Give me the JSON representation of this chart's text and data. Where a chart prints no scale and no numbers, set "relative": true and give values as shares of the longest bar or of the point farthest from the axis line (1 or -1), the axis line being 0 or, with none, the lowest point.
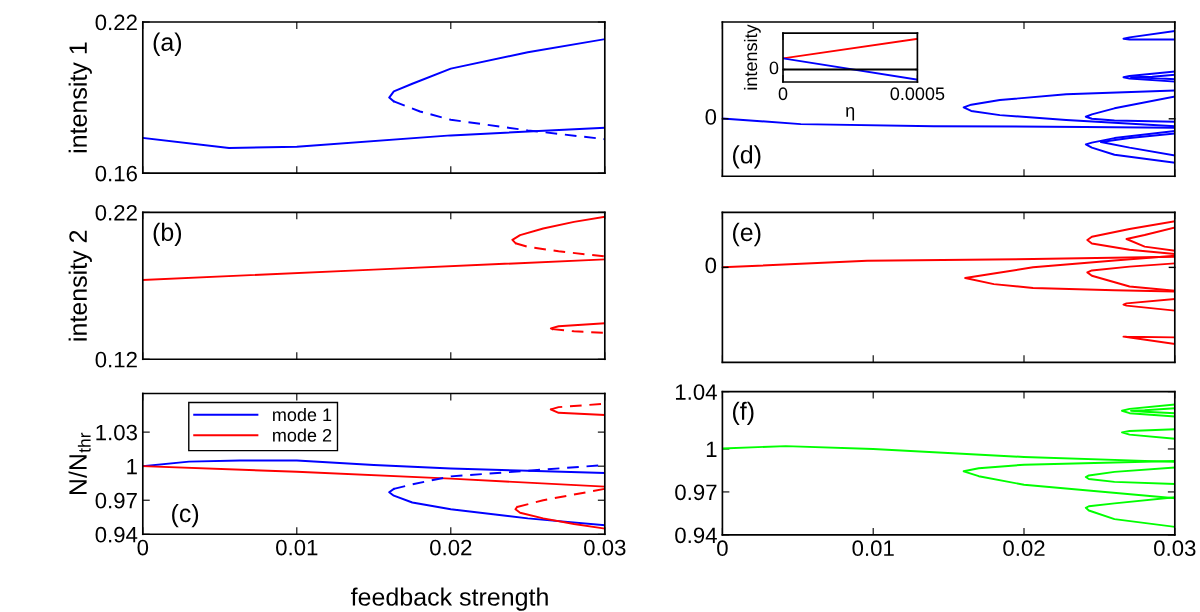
{
  "chart_data": [
    {
      "type": "line",
      "ylabel": "intensity 1",
      "annotations": [
        "(a)"
      ],
      "xlim": [
        0,
        0.03
      ],
      "ylim": [
        0.16,
        0.22
      ],
      "xticks": [
        0,
        0.01,
        0.02,
        0.03
      ],
      "yticks": [
        0.16,
        0.22
      ],
      "tick_labels": "y",
      "series": [
        {
          "color": "#0000ff",
          "x": [
            0,
            0.0056,
            0.01,
            0.02,
            0.03
          ],
          "values": [
            0.174,
            0.17,
            0.1705,
            0.175,
            0.178
          ]
        },
        {
          "color": "#0000ff",
          "x": [
            0.0163,
            0.016,
            0.0163,
            0.0175,
            0.02,
            0.025,
            0.03
          ],
          "values": [
            0.1885,
            0.19,
            0.1925,
            0.1955,
            0.2015,
            0.208,
            0.2132
          ]
        },
        {
          "color": "#0000ff",
          "line_style": "dashed",
          "x": [
            0.0163,
            0.018,
            0.02,
            0.025,
            0.03
          ],
          "values": [
            0.1885,
            0.1845,
            0.1812,
            0.177,
            0.1735
          ]
        }
      ]
    },
    {
      "type": "line",
      "ylabel": "intensity 2",
      "annotations": [
        "(b)"
      ],
      "xlim": [
        0,
        0.03
      ],
      "ylim": [
        0.12,
        0.22
      ],
      "xticks": [
        0,
        0.01,
        0.02,
        0.03
      ],
      "yticks": [
        0.12,
        0.22
      ],
      "tick_labels": "y",
      "series": [
        {
          "color": "#ff0000",
          "x": [
            0,
            0.015,
            0.03
          ],
          "values": [
            0.174,
            0.181,
            0.188
          ]
        },
        {
          "color": "#ff0000",
          "x": [
            0.0242,
            0.024,
            0.0245,
            0.026,
            0.028,
            0.03
          ],
          "values": [
            0.199,
            0.2013,
            0.2045,
            0.209,
            0.2135,
            0.217
          ]
        },
        {
          "color": "#ff0000",
          "line_style": "dashed",
          "x": [
            0.0242,
            0.025,
            0.027,
            0.03
          ],
          "values": [
            0.199,
            0.1965,
            0.1935,
            0.19
          ]
        },
        {
          "color": "#ff0000",
          "x": [
            0.0266,
            0.0265,
            0.027,
            0.03
          ],
          "values": [
            0.1405,
            0.141,
            0.1425,
            0.1445
          ]
        },
        {
          "color": "#ff0000",
          "line_style": "dashed",
          "x": [
            0.0266,
            0.028,
            0.03
          ],
          "values": [
            0.1405,
            0.139,
            0.138
          ]
        }
      ]
    },
    {
      "type": "line",
      "ylabel": "N/N$_{thr}$",
      "xlabel": "feedback strength",
      "annotations": [
        "(c)"
      ],
      "xlim": [
        0,
        0.03
      ],
      "ylim": [
        0.94,
        1.064
      ],
      "xticks": [
        0,
        0.01,
        0.02,
        0.03
      ],
      "yticks": [
        0.94,
        0.97,
        1,
        1.03
      ],
      "legend": "top left",
      "series": [
        {
          "name": "mode 1",
          "color": "#0000ff",
          "x": [
            0,
            0.003,
            0.0063,
            0.01,
            0.015,
            0.02,
            0.025,
            0.03
          ],
          "values": [
            1.0,
            1.004,
            1.005,
            1.005,
            1.001,
            0.998,
            0.996,
            0.994
          ]
        },
        {
          "name": "mode 2",
          "color": "#ff0000",
          "x": [
            0,
            0.01,
            0.02,
            0.03
          ],
          "values": [
            1.0,
            0.995,
            0.989,
            0.982
          ]
        },
        {
          "color": "#0000ff",
          "x": [
            0.0163,
            0.016,
            0.0163,
            0.0175,
            0.02,
            0.025,
            0.03
          ],
          "values": [
            0.98,
            0.977,
            0.974,
            0.968,
            0.962,
            0.954,
            0.948
          ]
        },
        {
          "color": "#0000ff",
          "line_style": "dashed",
          "x": [
            0.0163,
            0.0175,
            0.02,
            0.025,
            0.03
          ],
          "values": [
            0.98,
            0.984,
            0.991,
            0.996,
            1.001
          ]
        },
        {
          "color": "#ff0000",
          "x": [
            0.0243,
            0.0242,
            0.0245,
            0.026,
            0.028,
            0.03
          ],
          "values": [
            0.964,
            0.962,
            0.959,
            0.954,
            0.949,
            0.945
          ]
        },
        {
          "color": "#ff0000",
          "line_style": "dashed",
          "x": [
            0.0243,
            0.026,
            0.028,
            0.03
          ],
          "values": [
            0.964,
            0.97,
            0.975,
            0.98
          ]
        },
        {
          "color": "#ff0000",
          "x": [
            0.0265,
            0.027,
            0.03
          ],
          "values": [
            1.05,
            1.047,
            1.045
          ]
        },
        {
          "color": "#ff0000",
          "line_style": "dashed",
          "x": [
            0.0265,
            0.027,
            0.03
          ],
          "values": [
            1.05,
            1.052,
            1.055
          ]
        }
      ]
    },
    {
      "type": "line",
      "relative": true,
      "annotations": [
        "(d)",
        "0"
      ],
      "xlim": [
        0,
        0.03
      ],
      "xticks": [
        0,
        0.01,
        0.02,
        0.03
      ],
      "tick_labels": "y",
      "series": [
        {
          "color": "#0000ff",
          "x": [
            0,
            0.0052,
            0.014,
            0.024,
            0.03
          ],
          "values": [
            0.398,
            0.359,
            0.345,
            0.34,
            0.334
          ]
        },
        {
          "color": "#0000ff",
          "x": [
            0.03,
            0.0228,
            0.0184,
            0.0165,
            0.016,
            0.0165,
            0.0184,
            0.0228,
            0.03
          ],
          "values": [
            0.591,
            0.565,
            0.525,
            0.493,
            0.474,
            0.45,
            0.421,
            0.387,
            0.345
          ]
        },
        {
          "color": "#0000ff",
          "x": [
            0.03,
            0.026,
            0.0245,
            0.0241,
            0.0245,
            0.026,
            0.03
          ],
          "values": [
            0.549,
            0.468,
            0.426,
            0.41,
            0.396,
            0.384,
            0.376
          ]
        },
        {
          "color": "#0000ff",
          "x": [
            0.03,
            0.026,
            0.0245,
            0.0241,
            0.0245,
            0.026,
            0.03
          ],
          "values": [
            0.312,
            0.263,
            0.232,
            0.22,
            0.197,
            0.148,
            0.093
          ]
        },
        {
          "color": "#0000ff",
          "x": [
            0.03,
            0.027,
            0.0251,
            0.027,
            0.03
          ],
          "values": [
            0.294,
            0.263,
            0.236,
            0.197,
            0.143
          ]
        },
        {
          "color": "#0000ff",
          "x": [
            0.03,
            0.027,
            0.0266,
            0.027,
            0.03
          ],
          "values": [
            1,
            0.957,
            0.947,
            0.942,
            0.942
          ]
        },
        {
          "color": "#0000ff",
          "x": [
            0.03,
            0.027,
            0.0266,
            0.027,
            0.03
          ],
          "values": [
            0.722,
            0.691,
            0.682,
            0.673,
            0.652
          ]
        },
        {
          "color": "#0000ff",
          "x": [
            0.03,
            0.0285,
            0.0271,
            0.0285,
            0.03
          ],
          "values": [
            0.699,
            0.686,
            0.682,
            0.677,
            0.669
          ]
        }
      ]
    },
    {
      "type": "line",
      "relative": true,
      "xlabel": "η",
      "ylabel": "intensity",
      "annotations": [
        "0"
      ],
      "xlim": [
        0,
        0.0005
      ],
      "xticks": [
        0,
        0.0005
      ],
      "ref_lines": [
        {
          "axis": "y",
          "value": 0.289,
          "color": "#000000"
        }
      ],
      "series": [
        {
          "color": "#ff0000",
          "x": [
            0,
            0.0005
          ],
          "values": [
            0.547,
            1
          ]
        },
        {
          "color": "#0000ff",
          "x": [
            0,
            0.0005
          ],
          "values": [
            0.547,
            0.055
          ]
        }
      ]
    },
    {
      "type": "line",
      "relative": true,
      "annotations": [
        "(e)",
        "0"
      ],
      "xlim": [
        0,
        0.03
      ],
      "xticks": [
        0,
        0.01,
        0.02,
        0.03
      ],
      "tick_labels": "y",
      "series": [
        {
          "color": "#ff0000",
          "x": [
            0,
            0.0096,
            0.0206,
            0.03
          ],
          "values": [
            0.674,
            0.721,
            0.733,
            0.749
          ]
        },
        {
          "color": "#ff0000",
          "x": [
            0.03,
            0.026,
            0.0206,
            0.018,
            0.0161,
            0.018,
            0.0206,
            0.026,
            0.03
          ],
          "values": [
            0.756,
            0.722,
            0.674,
            0.63,
            0.598,
            0.555,
            0.527,
            0.511,
            0.503
          ]
        },
        {
          "color": "#ff0000",
          "x": [
            0.03,
            0.027,
            0.0245,
            0.0242,
            0.0245,
            0.027,
            0.03
          ],
          "values": [
            1,
            0.946,
            0.891,
            0.868,
            0.843,
            0.799,
            0.769
          ]
        },
        {
          "color": "#ff0000",
          "x": [
            0.03,
            0.028,
            0.0268,
            0.028,
            0.03
          ],
          "values": [
            0.957,
            0.903,
            0.875,
            0.821,
            0.792
          ]
        },
        {
          "color": "#ff0000",
          "x": [
            0.03,
            0.027,
            0.0245,
            0.0242,
            0.0245,
            0.027,
            0.03
          ],
          "values": [
            0.702,
            0.679,
            0.652,
            0.638,
            0.614,
            0.538,
            0.508
          ]
        },
        {
          "color": "#ff0000",
          "x": [
            0.03,
            0.0268,
            0.0266,
            0.0268,
            0.03
          ],
          "values": [
            0.449,
            0.418,
            0.409,
            0.402,
            0.367
          ]
        },
        {
          "color": "#ff0000",
          "x": [
            0.03,
            0.0268,
            0.0266,
            0.0268,
            0.03
          ],
          "values": [
            0.177,
            0.181,
            0.182,
            0.179,
            0.13
          ]
        }
      ]
    },
    {
      "type": "line",
      "annotations": [
        "(f)"
      ],
      "xlim": [
        0,
        0.03
      ],
      "ylim": [
        0.94,
        1.04
      ],
      "xticks": [
        0,
        0.01,
        0.02,
        0.03
      ],
      "yticks": [
        0.94,
        0.97,
        1,
        1.04
      ],
      "series": [
        {
          "color": "#00ff00",
          "x": [
            0,
            0.0042,
            0.01,
            0.02,
            0.03
          ],
          "values": [
            1.0004,
            1.002,
            1.0,
            0.9944,
            0.991
          ]
        },
        {
          "color": "#00ff00",
          "x": [
            0.03,
            0.02,
            0.017,
            0.016,
            0.017,
            0.02,
            0.03
          ],
          "values": [
            0.9916,
            0.989,
            0.9865,
            0.9844,
            0.981,
            0.975,
            0.9656
          ]
        },
        {
          "color": "#00ff00",
          "x": [
            0.03,
            0.026,
            0.0243,
            0.0241,
            0.0243,
            0.026,
            0.03
          ],
          "values": [
            0.987,
            0.984,
            0.9815,
            0.9804,
            0.979,
            0.977,
            0.9756
          ]
        },
        {
          "color": "#00ff00",
          "x": [
            0.03,
            0.026,
            0.0243,
            0.0241,
            0.0243,
            0.026,
            0.03
          ],
          "values": [
            0.9662,
            0.962,
            0.96,
            0.9589,
            0.957,
            0.951,
            0.9456
          ]
        },
        {
          "color": "#00ff00",
          "x": [
            0.03,
            0.027,
            0.0265,
            0.027,
            0.03
          ],
          "values": [
            1.031,
            1.028,
            1.0267,
            1.025,
            1.0227
          ]
        },
        {
          "color": "#00ff00",
          "x": [
            0.03,
            0.027,
            0.0265,
            0.027,
            0.03
          ],
          "values": [
            1.0138,
            1.0125,
            1.0116,
            1.01,
            1.0071
          ]
        },
        {
          "color": "#00ff00",
          "x": [
            0.03,
            0.028,
            0.0271,
            0.028,
            0.03
          ],
          "values": [
            1.0284,
            1.027,
            1.0267,
            1.026,
            1.0249
          ]
        }
      ]
    }
  ]
}
